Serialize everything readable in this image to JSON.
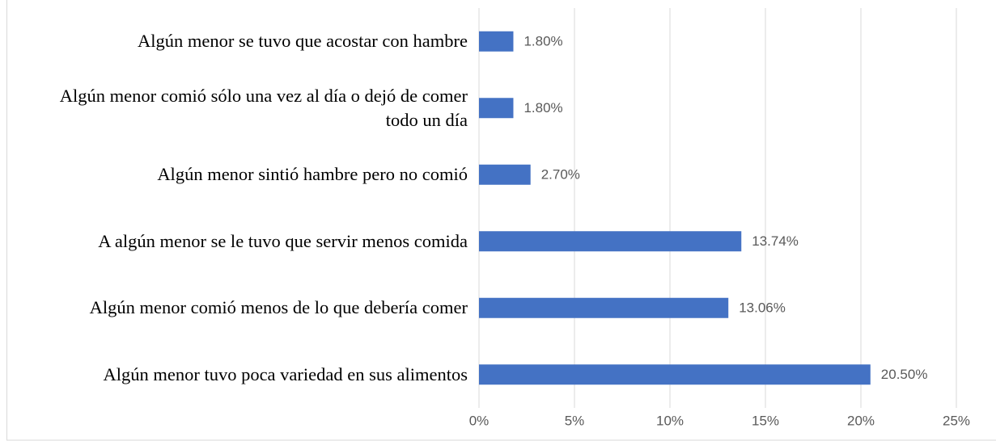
{
  "chart_data": {
    "type": "bar",
    "orientation": "horizontal",
    "categories": [
      "Algún menor se tuvo que acostar con hambre",
      "Algún menor comió sólo una vez al día o dejó de comer todo un día",
      "Algún menor sintió hambre pero no comió",
      "A algún menor se le tuvo que servir menos comida",
      "Algún menor comió menos de lo que debería comer",
      "Algún menor tuvo poca variedad en sus alimentos"
    ],
    "values": [
      1.8,
      1.8,
      2.7,
      13.74,
      13.06,
      20.5
    ],
    "value_labels": [
      "1.80%",
      "1.80%",
      "2.70%",
      "13.74%",
      "13.06%",
      "20.50%"
    ],
    "color": "#4472c4",
    "xlim": [
      0,
      25
    ],
    "xticks": [
      {
        "value": 0,
        "label": "0%"
      },
      {
        "value": 5,
        "label": "5%"
      },
      {
        "value": 10,
        "label": "10%"
      },
      {
        "value": 15,
        "label": "15%"
      },
      {
        "value": 20,
        "label": "20%"
      },
      {
        "value": 25,
        "label": "25%"
      }
    ],
    "grid": true
  }
}
